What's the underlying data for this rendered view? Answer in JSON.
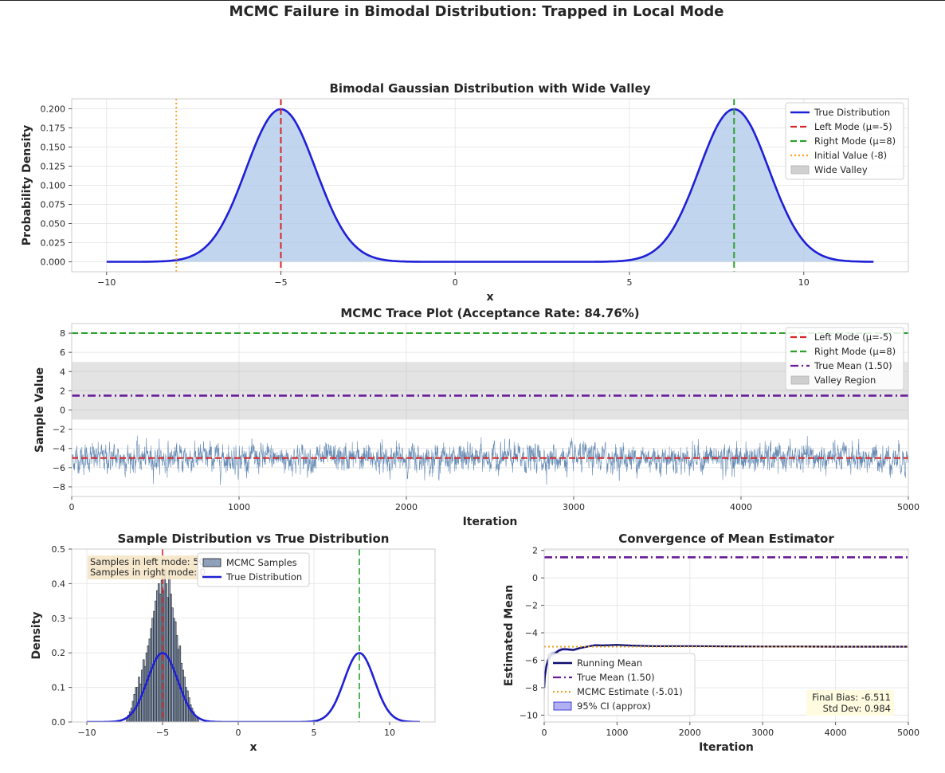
{
  "figure": {
    "title": "MCMC Failure in Bimodal Distribution: Trapped in Local Mode"
  },
  "colors": {
    "true_dist": "#1f1fd6",
    "fill_blue": "#aec7e8",
    "left_mode": "#d62728",
    "right_mode": "#2ca02c",
    "initial": "#ff9f1c",
    "valley": "#b0b0b0",
    "trace": "#4c78a8",
    "true_mean": "#6a1b9a",
    "running_mean": "#0b0b6e",
    "mcmc_estimate": "#e6a019",
    "hist_fill": "#6b83a6",
    "annotation_bg": "#f5e6c8",
    "bias_bg": "#fffbe0"
  },
  "chart_data": [
    {
      "id": "density",
      "type": "line",
      "title": "Bimodal Gaussian Distribution with Wide Valley",
      "xlabel": "x",
      "ylabel": "Probability Density",
      "xlim": [
        -11.0,
        13.0
      ],
      "ylim": [
        -0.013,
        0.213
      ],
      "xticks": [
        -10,
        -5,
        0,
        5,
        10
      ],
      "xtick_labels": [
        "−10",
        "−5",
        "0",
        "5",
        "10"
      ],
      "yticks": [
        0.0,
        0.025,
        0.05,
        0.075,
        0.1,
        0.125,
        0.15,
        0.175,
        0.2
      ],
      "ytick_labels": [
        "0.000",
        "0.025",
        "0.050",
        "0.075",
        "0.100",
        "0.125",
        "0.150",
        "0.175",
        "0.200"
      ],
      "grid": true,
      "legend_position": "top-right",
      "curve": {
        "x_range": [
          -10,
          12
        ],
        "components": [
          {
            "mean": -5,
            "sd": 1,
            "weight": 0.5
          },
          {
            "mean": 8,
            "sd": 1,
            "weight": 0.5
          }
        ]
      },
      "vlines": [
        {
          "x": -5,
          "style": "dashed",
          "color_key": "left_mode"
        },
        {
          "x": 8,
          "style": "dashed",
          "color_key": "right_mode"
        },
        {
          "x": -8,
          "style": "dotted",
          "color_key": "initial"
        }
      ],
      "legend": [
        {
          "label": "True Distribution",
          "kind": "line",
          "color_key": "true_dist"
        },
        {
          "label": "Left Mode (μ=-5)",
          "kind": "dashed",
          "color_key": "left_mode"
        },
        {
          "label": "Right Mode (μ=8)",
          "kind": "dashed",
          "color_key": "right_mode"
        },
        {
          "label": "Initial Value (-8)",
          "kind": "dotted",
          "color_key": "initial"
        },
        {
          "label": "Wide Valley",
          "kind": "patch",
          "color_key": "valley"
        }
      ]
    },
    {
      "id": "trace",
      "type": "line",
      "title": "MCMC Trace Plot (Acceptance Rate: 84.76%)",
      "xlabel": "Iteration",
      "ylabel": "Sample Value",
      "xlim": [
        0,
        5000
      ],
      "ylim": [
        -9,
        9
      ],
      "xticks": [
        0,
        1000,
        2000,
        3000,
        4000,
        5000
      ],
      "xtick_labels": [
        "0",
        "1000",
        "2000",
        "3000",
        "4000",
        "5000"
      ],
      "yticks": [
        -8,
        -6,
        -4,
        -2,
        0,
        2,
        4,
        6,
        8
      ],
      "ytick_labels": [
        "−8",
        "−6",
        "−4",
        "−2",
        "0",
        "2",
        "4",
        "6",
        "8"
      ],
      "grid": true,
      "legend_position": "top-right",
      "valley_region": [
        -1,
        5
      ],
      "hlines": [
        {
          "y": -5,
          "style": "dashed",
          "color_key": "left_mode"
        },
        {
          "y": 8,
          "style": "dashed",
          "color_key": "right_mode"
        },
        {
          "y": 1.5,
          "style": "dashdot",
          "color_key": "true_mean"
        }
      ],
      "trace_summary": {
        "iterations": 5000,
        "start": -8,
        "mean": -5.01,
        "sd": 0.984,
        "min": -7.9,
        "max": -2.1
      },
      "legend": [
        {
          "label": "Left Mode (μ=-5)",
          "kind": "dashed",
          "color_key": "left_mode"
        },
        {
          "label": "Right Mode (μ=8)",
          "kind": "dashed",
          "color_key": "right_mode"
        },
        {
          "label": "True Mean (1.50)",
          "kind": "dashdot",
          "color_key": "true_mean"
        },
        {
          "label": "Valley Region",
          "kind": "patch",
          "color_key": "valley"
        }
      ]
    },
    {
      "id": "hist",
      "type": "bar",
      "title": "Sample Distribution vs True Distribution",
      "xlabel": "x",
      "ylabel": "Density",
      "xlim": [
        -11.0,
        13.0
      ],
      "ylim": [
        0,
        0.5
      ],
      "xticks": [
        -10,
        -5,
        0,
        5,
        10
      ],
      "xtick_labels": [
        "−10",
        "−5",
        "0",
        "5",
        "10"
      ],
      "yticks": [
        0,
        0.1,
        0.2,
        0.3,
        0.4,
        0.5
      ],
      "ytick_labels": [
        "0.0",
        "0.1",
        "0.2",
        "0.3",
        "0.4",
        "0.5"
      ],
      "grid": true,
      "legend_position": "top-center",
      "bins": {
        "start": -7.4,
        "width": 0.1,
        "values": [
          0.01,
          0.02,
          0.03,
          0.04,
          0.06,
          0.08,
          0.1,
          0.1,
          0.13,
          0.11,
          0.15,
          0.18,
          0.16,
          0.2,
          0.22,
          0.24,
          0.27,
          0.3,
          0.32,
          0.35,
          0.38,
          0.4,
          0.37,
          0.41,
          0.38,
          0.44,
          0.4,
          0.36,
          0.42,
          0.37,
          0.33,
          0.3,
          0.29,
          0.25,
          0.21,
          0.22,
          0.17,
          0.15,
          0.13,
          0.1,
          0.09,
          0.07,
          0.05,
          0.04,
          0.03,
          0.02,
          0.015,
          0.01
        ]
      },
      "curve": {
        "x_range": [
          -10,
          12
        ],
        "components": [
          {
            "mean": -5,
            "sd": 1,
            "weight": 0.5
          },
          {
            "mean": 8,
            "sd": 1,
            "weight": 0.5
          }
        ]
      },
      "vlines": [
        {
          "x": -5,
          "style": "dashed",
          "color_key": "left_mode"
        },
        {
          "x": 8,
          "style": "dashed",
          "color_key": "right_mode"
        }
      ],
      "annotation": [
        "Samples in left mode: 5000",
        "Samples in right mode: 0"
      ],
      "legend": [
        {
          "label": "MCMC Samples",
          "kind": "patch",
          "color_key": "hist_fill"
        },
        {
          "label": "True Distribution",
          "kind": "line",
          "color_key": "true_dist"
        }
      ]
    },
    {
      "id": "convergence",
      "type": "line",
      "title": "Convergence of Mean Estimator",
      "xlabel": "Iteration",
      "ylabel": "Estimated Mean",
      "xlim": [
        0,
        5000
      ],
      "ylim": [
        -10.5,
        2.1
      ],
      "xticks": [
        0,
        1000,
        2000,
        3000,
        4000,
        5000
      ],
      "xtick_labels": [
        "0",
        "1000",
        "2000",
        "3000",
        "4000",
        "5000"
      ],
      "yticks": [
        -10,
        -8,
        -6,
        -4,
        -2,
        0,
        2
      ],
      "ytick_labels": [
        "−10",
        "−8",
        "−6",
        "−4",
        "−2",
        "0",
        "2"
      ],
      "grid": true,
      "legend_position": "lower-left",
      "running_mean": {
        "x": [
          1,
          10,
          30,
          60,
          100,
          150,
          200,
          250,
          300,
          400,
          500,
          600,
          700,
          800,
          1000,
          1200,
          1500,
          2000,
          2500,
          3000,
          3500,
          4000,
          4500,
          5000
        ],
        "y": [
          -8.0,
          -7.2,
          -6.4,
          -5.9,
          -5.6,
          -5.5,
          -5.3,
          -5.2,
          -5.2,
          -5.25,
          -5.1,
          -5.0,
          -4.9,
          -4.92,
          -4.88,
          -4.93,
          -4.98,
          -4.97,
          -4.99,
          -5.0,
          -5.0,
          -5.01,
          -5.01,
          -5.01
        ]
      },
      "hlines": [
        {
          "y": 1.5,
          "style": "dashdot",
          "color_key": "true_mean"
        },
        {
          "y": -5.01,
          "style": "dotted",
          "color_key": "mcmc_estimate"
        }
      ],
      "stats_box": [
        "Final Bias: -6.511",
        "Std Dev: 0.984"
      ],
      "legend": [
        {
          "label": "Running Mean",
          "kind": "line",
          "color_key": "running_mean"
        },
        {
          "label": "True Mean (1.50)",
          "kind": "dashdot",
          "color_key": "true_mean"
        },
        {
          "label": "MCMC Estimate (-5.01)",
          "kind": "dotted",
          "color_key": "mcmc_estimate"
        },
        {
          "label": "95% CI (approx)",
          "kind": "patch_blue",
          "color_key": "true_dist"
        }
      ]
    }
  ]
}
